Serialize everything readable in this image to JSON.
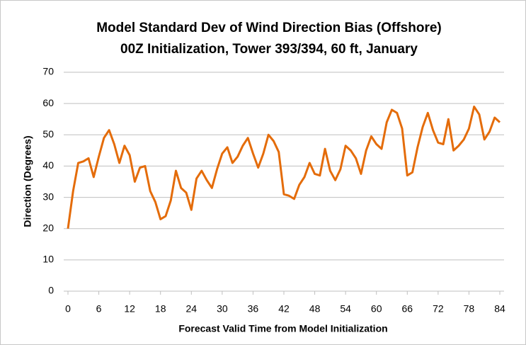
{
  "chart_data": {
    "type": "line",
    "title": "Model Standard Dev of Wind Direction Bias (Offshore)",
    "subtitle": "00Z Initialization, Tower 393/394, 60 ft, January",
    "x_label": "Forecast Valid Time from  Model Initialization",
    "y_label": "Direction (Degrees)",
    "x": [
      0,
      1,
      2,
      3,
      4,
      5,
      6,
      7,
      8,
      9,
      10,
      11,
      12,
      13,
      14,
      15,
      16,
      17,
      18,
      19,
      20,
      21,
      22,
      23,
      24,
      25,
      26,
      27,
      28,
      29,
      30,
      31,
      32,
      33,
      34,
      35,
      36,
      37,
      38,
      39,
      40,
      41,
      42,
      43,
      44,
      45,
      46,
      47,
      48,
      49,
      50,
      51,
      52,
      53,
      54,
      55,
      56,
      57,
      58,
      59,
      60,
      61,
      62,
      63,
      64,
      65,
      66,
      67,
      68,
      69,
      70,
      71,
      72,
      73,
      74,
      75,
      76,
      77,
      78,
      79,
      80,
      81,
      82,
      83,
      84
    ],
    "values": [
      20,
      32,
      41,
      41.5,
      42.5,
      36.5,
      43,
      49,
      51.5,
      47,
      41,
      46.5,
      43.5,
      35,
      39.5,
      40,
      32,
      28.5,
      23,
      24,
      29,
      38.5,
      33,
      31.5,
      26,
      36,
      38.5,
      35.5,
      33,
      39,
      44,
      46,
      41,
      43,
      46.5,
      49,
      44,
      39.5,
      44,
      50,
      48,
      44.5,
      31,
      30.5,
      29.5,
      34,
      36.5,
      41,
      37.5,
      37,
      45.5,
      38.5,
      35.5,
      39,
      46.5,
      45,
      42.5,
      37.5,
      45,
      49.5,
      47,
      45.5,
      54,
      58,
      57,
      52,
      37,
      38,
      46,
      52.5,
      57,
      51.5,
      47.5,
      47,
      55,
      45,
      46.5,
      48.5,
      52,
      59,
      56.5,
      48.5,
      51,
      55.5,
      54
    ],
    "color": "#e46c0a",
    "xlim": [
      0,
      84
    ],
    "xticks": [
      0,
      6,
      12,
      18,
      24,
      30,
      36,
      42,
      48,
      54,
      60,
      66,
      72,
      78,
      84
    ],
    "ylim": [
      0,
      70
    ],
    "yticks": [
      0,
      10,
      20,
      30,
      40,
      50,
      60,
      70
    ],
    "grid": true
  }
}
